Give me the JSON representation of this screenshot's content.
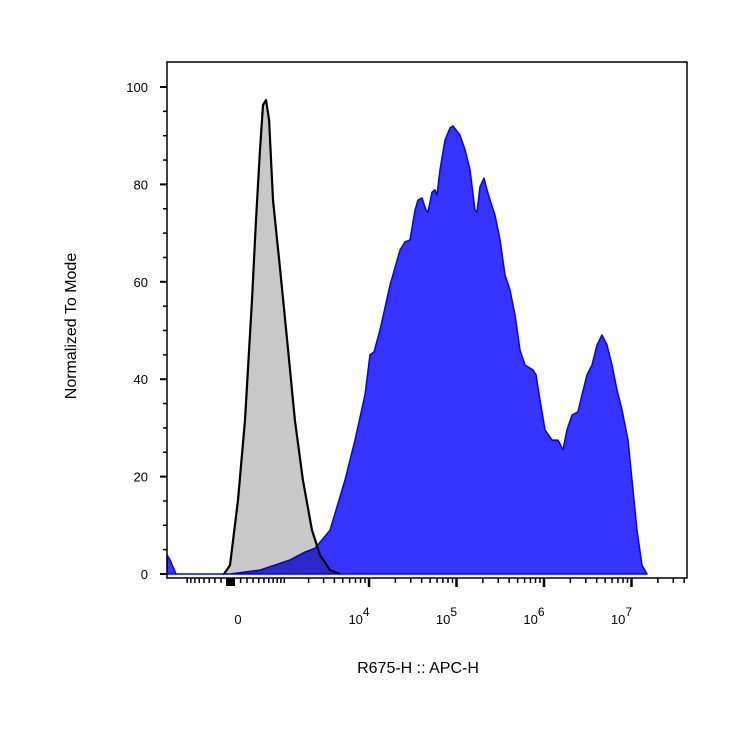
{
  "chart_data": {
    "type": "area",
    "title": "",
    "xlabel": "R675-H :: APC-H",
    "ylabel": "Normalized To Mode",
    "x_scale": "biexponential",
    "xlim": [
      -1600,
      43000000
    ],
    "ylim": [
      0,
      100
    ],
    "grid": false,
    "y_ticks": [
      0,
      20,
      40,
      60,
      80,
      100
    ],
    "x_ticks": [
      {
        "value": 0,
        "base": "0",
        "exp": ""
      },
      {
        "value": 10000,
        "base": "10",
        "exp": "4"
      },
      {
        "value": 100000,
        "base": "10",
        "exp": "5"
      },
      {
        "value": 1000000,
        "base": "10",
        "exp": "6"
      },
      {
        "value": 10000000,
        "base": "10",
        "exp": "7"
      }
    ],
    "colors": {
      "stained_fill": "#3535ff",
      "stained_line": "#0000ff",
      "control_fill": "#c8c8c8",
      "control_line": "#000000"
    },
    "series": [
      {
        "role": "control",
        "x": [
          -152,
          -60,
          60,
          168,
          282,
          351,
          424,
          481,
          542,
          607,
          698,
          882,
          1122,
          1364,
          1708,
          2196,
          2722,
          3558,
          4641
        ],
        "y": [
          0,
          1.8,
          15.2,
          31.6,
          56.3,
          72.7,
          87.1,
          96.3,
          97.3,
          93.2,
          76.8,
          62.4,
          46.0,
          31.6,
          19.3,
          9.0,
          3.9,
          0.8,
          0
        ]
      },
      {
        "role": "stained",
        "x": [
          -1616,
          -1490,
          -1255,
          -60,
          424,
          1186,
          1811,
          2384,
          3558,
          5306,
          6905,
          8990,
          10257,
          11397,
          13351,
          17362,
          22605,
          25785,
          29424,
          33550,
          36300,
          40340,
          44838,
          47244,
          52487,
          56784,
          59850,
          64778,
          73946,
          84260,
          91222,
          98671,
          109615,
          125086,
          142763,
          162732,
          171614,
          185709,
          206280,
          223241,
          241520,
          275327,
          314176,
          358555,
          408692,
          466307,
          531458,
          606807,
          748052,
          809649,
          899897,
          1025670,
          1233383,
          1444533,
          1648521,
          1831308,
          2090018,
          2446424,
          2717739,
          3097352,
          3534837,
          4034207,
          4597752,
          5248107,
          5980401,
          6826149,
          7789935,
          9115571,
          10134651,
          11551680,
          13181865,
          15032655
        ],
        "y": [
          3.9,
          2.9,
          0,
          0,
          0.8,
          2.9,
          4.5,
          5.3,
          9.0,
          19.3,
          27.5,
          36.8,
          45.0,
          45.6,
          50.1,
          59.3,
          66.5,
          68.2,
          68.6,
          74.7,
          76.8,
          77.2,
          74.7,
          74.3,
          78.4,
          78.9,
          77.8,
          83.0,
          89.1,
          91.6,
          92.0,
          91.2,
          90.1,
          87.1,
          83.0,
          74.7,
          74.3,
          79.5,
          81.3,
          78.9,
          76.8,
          73.7,
          68.6,
          61.4,
          58.3,
          53.2,
          46.0,
          42.9,
          41.9,
          40.9,
          35.7,
          29.6,
          27.5,
          27.5,
          25.5,
          29.6,
          32.6,
          33.3,
          36.8,
          40.9,
          42.9,
          47.0,
          49.1,
          47.0,
          42.9,
          37.8,
          33.7,
          27.5,
          19.3,
          9.0,
          1.8,
          0
        ]
      }
    ]
  }
}
